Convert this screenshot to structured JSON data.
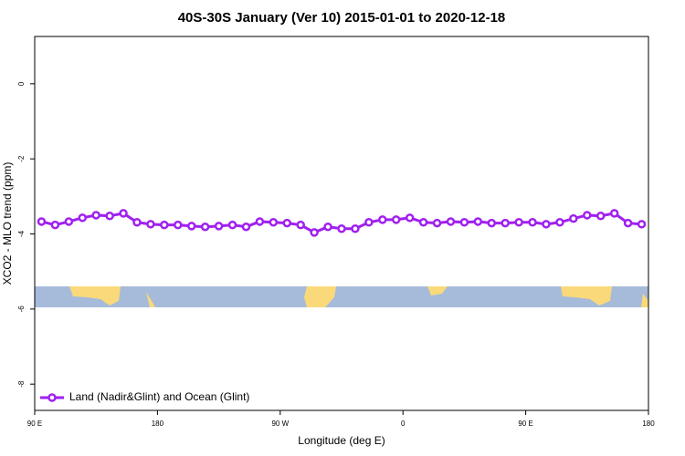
{
  "chart_data": {
    "type": "line",
    "title": "40S-30S January (Ver 10)   2015-01-01 to 2020-12-18",
    "xlabel": "Longitude (deg E)",
    "ylabel": "XCO2 - MLO trend (ppm)",
    "x": [
      95,
      105,
      115,
      125,
      135,
      145,
      155,
      165,
      175,
      185,
      195,
      205,
      215,
      225,
      235,
      245,
      255,
      265,
      275,
      285,
      295,
      305,
      315,
      325,
      335,
      345,
      355,
      365,
      375,
      385,
      395,
      405,
      415,
      425,
      435,
      445,
      455,
      465,
      475,
      485,
      495,
      505,
      515,
      525,
      535
    ],
    "series": [
      {
        "name": "Land (Nadir&Glint) and Ocean (Glint)",
        "color": "#a020f0",
        "values": [
          -3.67,
          -3.76,
          -3.67,
          -3.57,
          -3.5,
          -3.52,
          -3.45,
          -3.69,
          -3.74,
          -3.76,
          -3.76,
          -3.79,
          -3.81,
          -3.79,
          -3.76,
          -3.81,
          -3.67,
          -3.69,
          -3.71,
          -3.76,
          -3.96,
          -3.81,
          -3.86,
          -3.86,
          -3.69,
          -3.62,
          -3.62,
          -3.57,
          -3.69,
          -3.71,
          -3.67,
          -3.69,
          -3.67,
          -3.71,
          -3.71,
          -3.69,
          -3.69,
          -3.74,
          -3.69,
          -3.59,
          -3.5,
          -3.52,
          -3.45,
          -3.71,
          -3.74
        ]
      }
    ],
    "xlim": [
      90,
      540
    ],
    "xticks": [
      {
        "value": 90,
        "label": "90 E"
      },
      180,
      {
        "value": 270,
        "label": "90 W"
      },
      {
        "value": 360,
        "label": "0"
      },
      {
        "value": 450,
        "label": "90 E"
      },
      {
        "value": 540,
        "label": "180"
      }
    ],
    "ylim": [
      -8.7,
      1.26
    ],
    "yticks": [
      0,
      -2,
      -4,
      -6,
      -8
    ],
    "grid": false,
    "legend": "lower left"
  }
}
